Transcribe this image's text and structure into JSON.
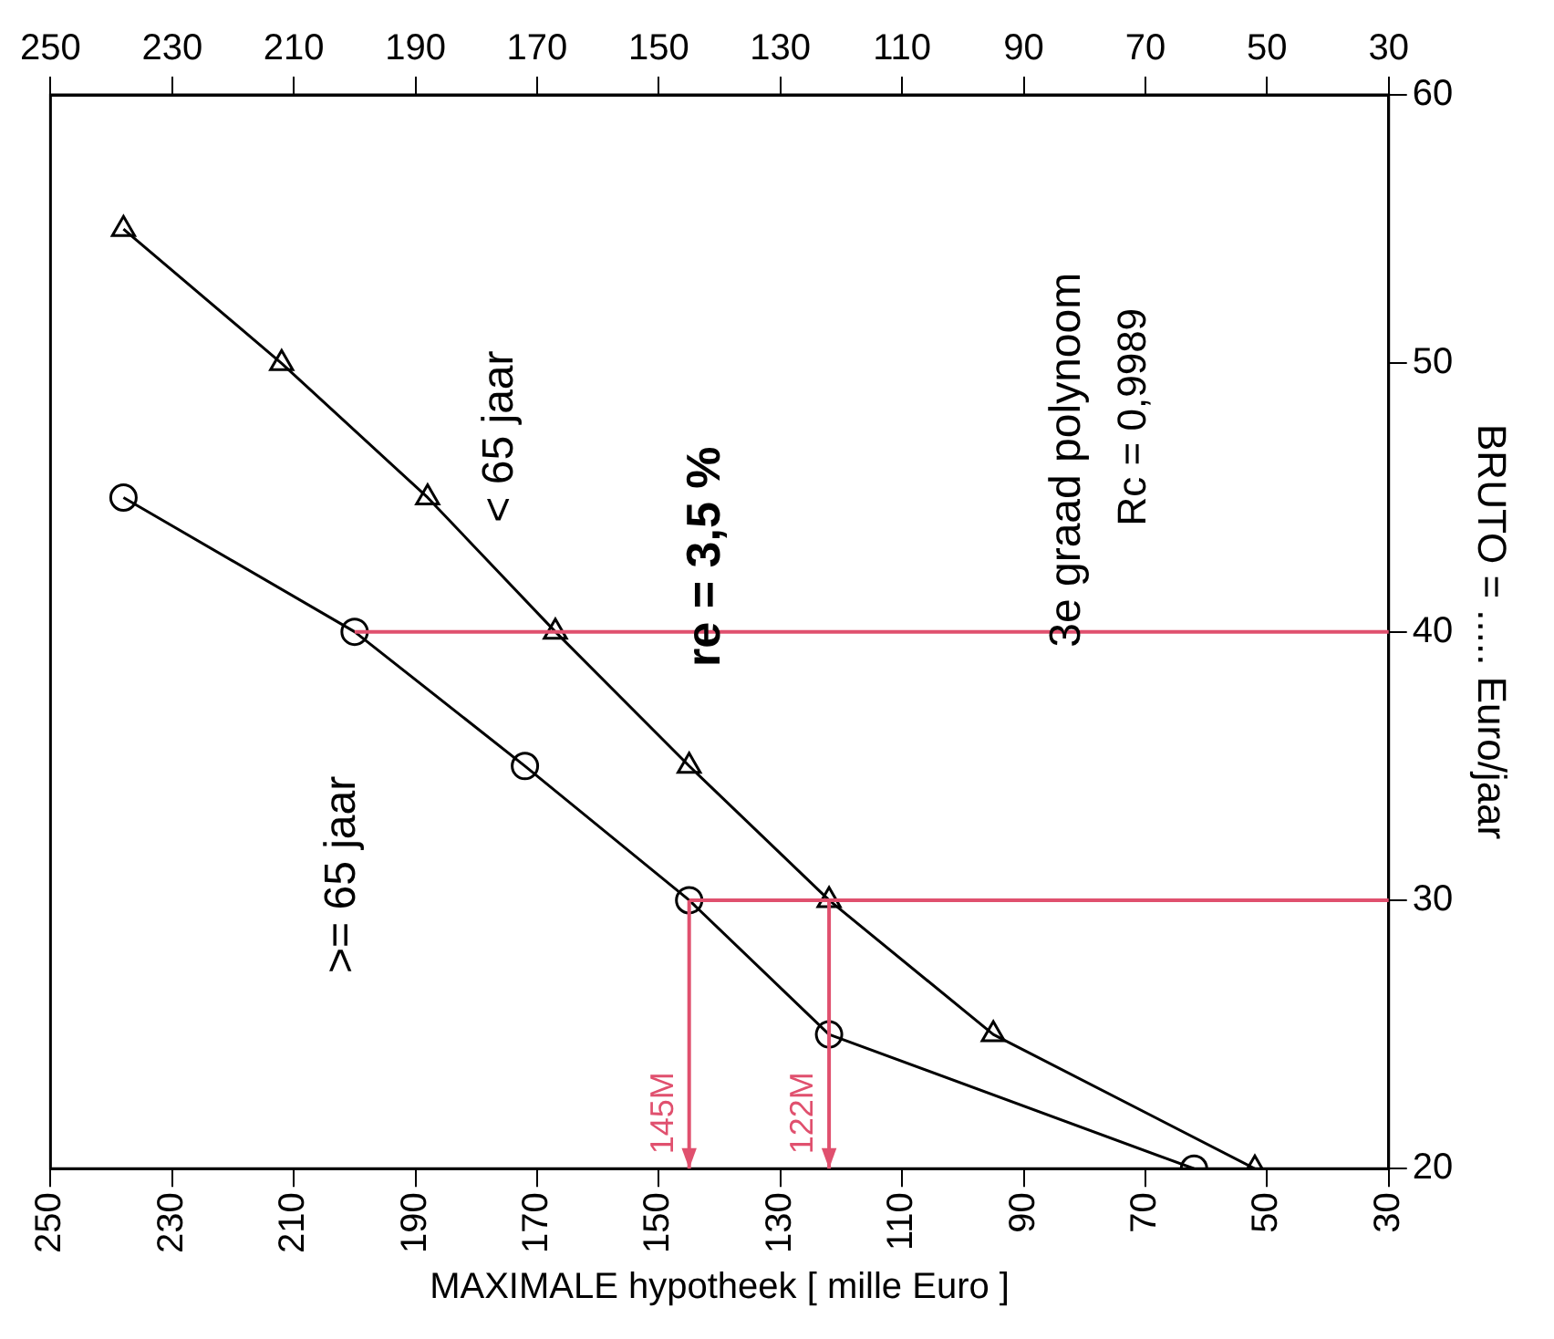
{
  "chart_data": {
    "type": "line",
    "xlabel": "MAXIMALE hypotheek [ mille Euro ]",
    "ylabel": "BRUTO = ..... Euro/jaar",
    "xlim": [
      250,
      30
    ],
    "xticks": [
      250,
      230,
      210,
      190,
      170,
      150,
      130,
      110,
      90,
      70,
      50,
      30
    ],
    "x2lim": [
      250,
      30
    ],
    "x2ticks": [
      250,
      230,
      210,
      190,
      170,
      150,
      130,
      110,
      90,
      70,
      50,
      30
    ],
    "ylim": [
      20,
      60
    ],
    "yticks": [
      20,
      30,
      40,
      50,
      60
    ],
    "grid": false,
    "series": [
      {
        "name": ">= 65 jaar",
        "color": "#000000",
        "marker": "circle",
        "x": [
          62,
          122,
          145,
          172,
          200,
          238
        ],
        "values": [
          20,
          25,
          30,
          35,
          40,
          45
        ]
      },
      {
        "name": "< 65 jaar",
        "color": "#000000",
        "marker": "triangle",
        "x": [
          52,
          95,
          122,
          145,
          167,
          188,
          212,
          238
        ],
        "values": [
          20,
          25,
          30,
          35,
          40,
          45,
          50,
          55
        ]
      }
    ],
    "ref_lines": [
      {
        "axis": "y",
        "value": 30,
        "color": "#e0506e"
      },
      {
        "axis": "y",
        "value": 40,
        "color": "#e0506e"
      }
    ],
    "annotations": [
      "re = 3,5 %",
      "3e graad polynoom",
      "Rc = 0,9989",
      {
        "text": "145M",
        "x": 145,
        "y": 30
      },
      {
        "text": "122M",
        "x": 122,
        "y": 30
      }
    ]
  }
}
